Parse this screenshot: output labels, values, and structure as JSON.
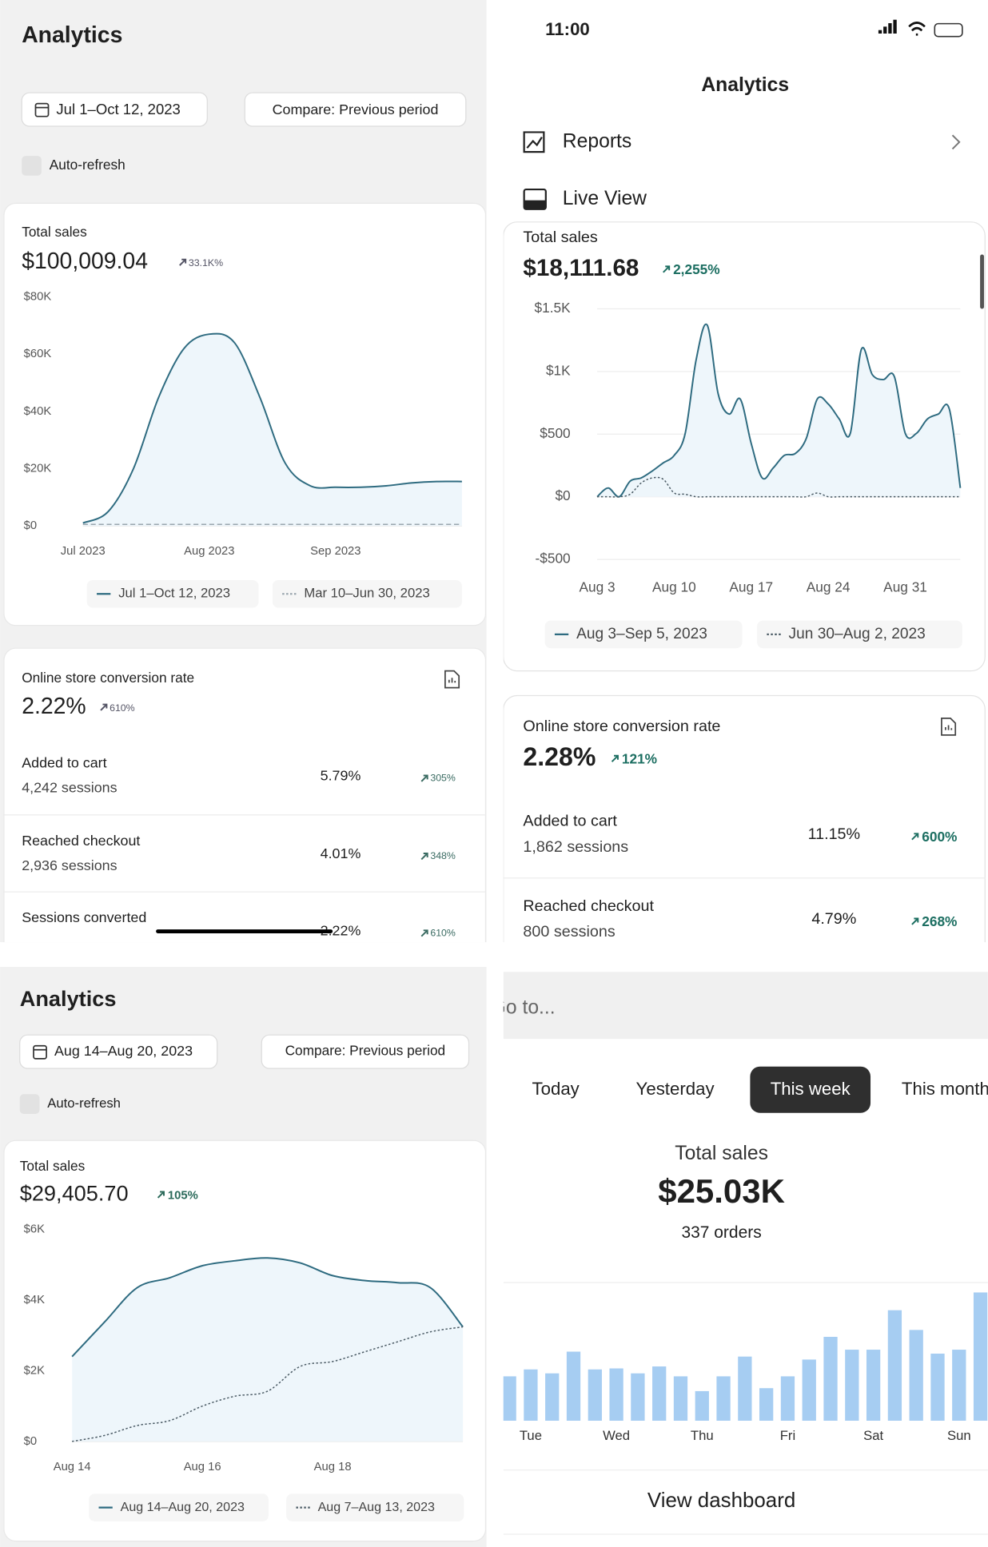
{
  "screen1": {
    "title": "Analytics",
    "date_range": "Jul 1–Oct 12, 2023",
    "compare": "Compare: Previous period",
    "auto_refresh": "Auto-refresh",
    "total_sales_label": "Total sales",
    "total_sales": "$100,009.04",
    "total_sales_change": "33.1K%",
    "conversion": {
      "label": "Online store conversion rate",
      "value": "2.22%",
      "change": "610%",
      "rows": [
        {
          "label": "Added to cart",
          "sessions": "4,242 sessions",
          "rate": "5.79%",
          "change": "305%"
        },
        {
          "label": "Reached checkout",
          "sessions": "2,936 sessions",
          "rate": "4.01%",
          "change": "348%"
        },
        {
          "label": "Sessions converted",
          "rate": "2.22%",
          "change": "610%"
        }
      ]
    }
  },
  "screen2": {
    "time": "11:00",
    "title": "Analytics",
    "menu": [
      "Reports",
      "Live View"
    ],
    "total_sales_label": "Total sales",
    "total_sales": "$18,111.68",
    "total_sales_change": "2,255%",
    "conversion": {
      "label": "Online store conversion rate",
      "value": "2.28%",
      "change": "121%",
      "rows": [
        {
          "label": "Added to cart",
          "sessions": "1,862 sessions",
          "rate": "11.15%",
          "change": "600%"
        },
        {
          "label": "Reached checkout",
          "sessions": "800 sessions",
          "rate": "4.79%",
          "change": "268%"
        }
      ]
    }
  },
  "screen3": {
    "title": "Analytics",
    "date_range": "Aug 14–Aug 20, 2023",
    "compare": "Compare: Previous period",
    "auto_refresh": "Auto-refresh",
    "total_sales_label": "Total sales",
    "total_sales": "$29,405.70",
    "total_sales_change": "105%"
  },
  "screen4": {
    "search": "Go to...",
    "tabs": [
      "Today",
      "Yesterday",
      "This week",
      "This month"
    ],
    "selected_tab": 2,
    "total_sales_label": "Total sales",
    "total_sales": "$25.03K",
    "orders": "337 orders",
    "button": "View dashboard"
  },
  "chart_data": [
    {
      "type": "line",
      "area": true,
      "grid": false,
      "categories": [
        "Jul 2023",
        null,
        null,
        null,
        null,
        "Aug 2023",
        null,
        null,
        null,
        null,
        "Sep 2023",
        null,
        null,
        null,
        null,
        null
      ],
      "ylim": [
        0,
        80000
      ],
      "yticks": [
        {
          "value": 0,
          "label": "$0"
        },
        {
          "value": 20000,
          "label": "$20K"
        },
        {
          "value": 40000,
          "label": "$40K"
        },
        {
          "value": 60000,
          "label": "$60K"
        },
        {
          "value": 80000,
          "label": "$80K"
        }
      ],
      "series": [
        {
          "name": "Jul 1–Oct 12, 2023",
          "color": "#2e6b80",
          "style": "solid",
          "values": [
            1000,
            5000,
            20000,
            45000,
            62000,
            67000,
            64000,
            45000,
            22000,
            14000,
            13500,
            13500,
            14000,
            15000,
            15500,
            15500
          ]
        },
        {
          "name": "Mar 10–Jun 30, 2023",
          "color": "#9aa6ae",
          "style": "dashed",
          "values": [
            500,
            500,
            500,
            500,
            500,
            500,
            500,
            500,
            500,
            500,
            500,
            500,
            500,
            500,
            500,
            500
          ]
        }
      ]
    },
    {
      "type": "line",
      "area": true,
      "grid": true,
      "categories": [
        "Aug 3",
        null,
        null,
        null,
        null,
        null,
        null,
        "Aug 10",
        null,
        null,
        null,
        null,
        null,
        null,
        "Aug 17",
        null,
        null,
        null,
        null,
        null,
        null,
        "Aug 24",
        null,
        null,
        null,
        null,
        null,
        null,
        "Aug 31",
        null,
        null,
        null,
        null,
        null
      ],
      "ylim": [
        -500,
        1500
      ],
      "yticks": [
        {
          "value": -500,
          "label": "-$500"
        },
        {
          "value": 0,
          "label": "$0"
        },
        {
          "value": 500,
          "label": "$500"
        },
        {
          "value": 1000,
          "label": "$1K"
        },
        {
          "value": 1500,
          "label": "$1.5K"
        }
      ],
      "series": [
        {
          "name": "Aug 3–Sep 5, 2023",
          "color": "#2e6b80",
          "style": "solid",
          "values": [
            0,
            70,
            0,
            125,
            150,
            205,
            270,
            330,
            505,
            1095,
            1370,
            820,
            660,
            780,
            425,
            150,
            230,
            330,
            345,
            465,
            780,
            740,
            620,
            505,
            1175,
            975,
            935,
            960,
            505,
            505,
            620,
            660,
            700,
            70
          ]
        },
        {
          "name": "Jun 30–Aug 2, 2023",
          "color": "#4a5a64",
          "style": "dotted",
          "values": [
            0,
            0,
            0,
            20,
            110,
            150,
            140,
            30,
            20,
            0,
            0,
            0,
            0,
            0,
            0,
            0,
            0,
            0,
            0,
            0,
            30,
            0,
            0,
            0,
            0,
            0,
            0,
            0,
            0,
            0,
            0,
            0,
            0,
            0
          ]
        }
      ]
    },
    {
      "type": "line",
      "area": true,
      "grid": false,
      "categories": [
        "Aug 14",
        null,
        null,
        null,
        "Aug 16",
        null,
        null,
        null,
        "Aug 18",
        null,
        null,
        null,
        null
      ],
      "ylim": [
        0,
        6000
      ],
      "yticks": [
        {
          "value": 0,
          "label": "$0"
        },
        {
          "value": 2000,
          "label": "$2K"
        },
        {
          "value": 4000,
          "label": "$4K"
        },
        {
          "value": 6000,
          "label": "$6K"
        }
      ],
      "series": [
        {
          "name": "Aug 14–Aug 20, 2023",
          "color": "#2e6b80",
          "style": "solid",
          "values": [
            2400,
            3380,
            4350,
            4630,
            4970,
            5110,
            5190,
            5050,
            4690,
            4550,
            4490,
            4350,
            3240
          ]
        },
        {
          "name": "Aug 7–Aug 13, 2023",
          "color": "#4a5a64",
          "style": "dotted",
          "values": [
            0,
            170,
            450,
            590,
            1000,
            1280,
            1420,
            2120,
            2260,
            2540,
            2820,
            3100,
            3240
          ]
        }
      ]
    },
    {
      "type": "bar",
      "color": "#a6cdf2",
      "categories": [
        null,
        "Tue",
        null,
        null,
        null,
        "Wed",
        null,
        null,
        null,
        "Thu",
        null,
        null,
        null,
        "Fri",
        null,
        null,
        null,
        "Sat",
        null,
        null,
        null,
        "Sun",
        null
      ],
      "values": [
        45,
        52,
        48,
        70,
        52,
        53,
        48,
        55,
        45,
        30,
        45,
        65,
        33,
        45,
        62,
        85,
        72,
        72,
        112,
        92,
        68,
        72,
        130
      ],
      "ylim": [
        0,
        140
      ]
    }
  ]
}
